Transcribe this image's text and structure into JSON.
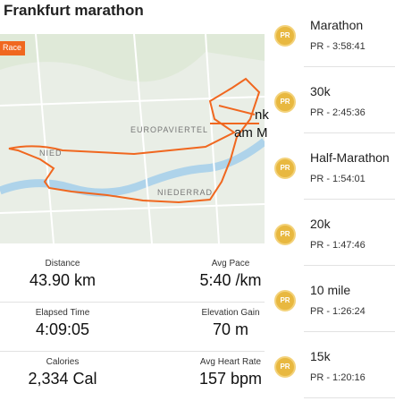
{
  "header": {
    "title": "Frankfurt marathon"
  },
  "map": {
    "badge": "Race",
    "labels": [
      "EUROPAVIERTEL",
      "NIED",
      "NIEDERRAD",
      "am M",
      "nk"
    ]
  },
  "stats": [
    {
      "label": "Distance",
      "value": "43.90 km"
    },
    {
      "label": "Avg Pace",
      "value": "5:40 /km"
    },
    {
      "label": "Elapsed Time",
      "value": "4:09:05"
    },
    {
      "label": "Elevation Gain",
      "value": "70 m"
    },
    {
      "label": "Calories",
      "value": "2,334 Cal"
    },
    {
      "label": "Avg Heart Rate",
      "value": "157 bpm"
    }
  ],
  "achievements": {
    "medal_label": "PR",
    "items": [
      {
        "name": "Marathon",
        "time": "PR - 3:58:41"
      },
      {
        "name": "30k",
        "time": "PR - 2:45:36"
      },
      {
        "name": "Half-Marathon",
        "time": "PR - 1:54:01"
      },
      {
        "name": "20k",
        "time": "PR - 1:47:46"
      },
      {
        "name": "10 mile",
        "time": "PR - 1:26:24"
      },
      {
        "name": "15k",
        "time": "PR - 1:20:16"
      }
    ]
  }
}
